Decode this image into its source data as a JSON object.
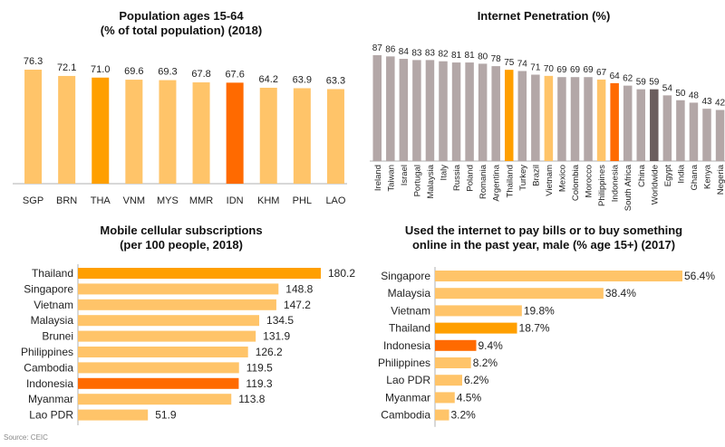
{
  "source": "Source: CEIC",
  "colors": {
    "light": "#FFC469",
    "thailand": "#FF9F00",
    "indonesia": "#FF6A00",
    "grey": "#B3A7A7",
    "worldwide": "#6B5E5E",
    "axis": "#B0B0B0"
  },
  "chart_data": [
    {
      "id": "pop",
      "type": "bar",
      "title": "Population ages 15-64",
      "subtitle": "(% of total population) (2018)",
      "categories": [
        "SGP",
        "BRN",
        "THA",
        "VNM",
        "MYS",
        "MMR",
        "IDN",
        "KHM",
        "PHL",
        "LAO"
      ],
      "values": [
        76.3,
        72.1,
        71.0,
        69.6,
        69.3,
        67.8,
        67.6,
        64.2,
        63.9,
        63.3
      ],
      "labels": [
        "76.3",
        "72.1",
        "71.0",
        "69.6",
        "69.3",
        "67.8",
        "67.6",
        "64.2",
        "63.9",
        "63.3"
      ],
      "highlight": {
        "THA": "thailand",
        "IDN": "indonesia"
      },
      "ylim": [
        0,
        80
      ]
    },
    {
      "id": "inet",
      "type": "bar",
      "title": "Internet Penetration (%)",
      "categories": [
        "Ireland",
        "Taiwan",
        "Israel",
        "Portugal",
        "Malaysia",
        "Italy",
        "Russia",
        "Poland",
        "Romania",
        "Argentina",
        "Thailand",
        "Turkey",
        "Brazil",
        "Vietnam",
        "Mexico",
        "Colombia",
        "Morocco",
        "Philippines",
        "Indonesia",
        "South Africa",
        "China",
        "Worldwide",
        "Egypt",
        "India",
        "Ghana",
        "Kenya",
        "Negeria"
      ],
      "values": [
        87,
        86,
        84,
        83,
        83,
        82,
        81,
        81,
        80,
        78,
        75,
        74,
        71,
        70,
        69,
        69,
        69,
        67,
        64,
        62,
        59,
        59,
        54,
        50,
        48,
        43,
        42
      ],
      "highlight": {
        "Thailand": "thailand",
        "Vietnam": "light",
        "Philippines": "light",
        "Indonesia": "indonesia",
        "Worldwide": "worldwide"
      },
      "ylim": [
        0,
        90
      ]
    },
    {
      "id": "mobile",
      "type": "bar",
      "orientation": "horizontal",
      "title": "Mobile cellular subscriptions",
      "subtitle": "(per 100 people, 2018)",
      "categories": [
        "Thailand",
        "Singapore",
        "Vietnam",
        "Malaysia",
        "Brunei",
        "Philippines",
        "Cambodia",
        "Indonesia",
        "Myanmar",
        "Lao PDR"
      ],
      "values": [
        180.2,
        148.8,
        147.2,
        134.5,
        131.9,
        126.2,
        119.5,
        119.3,
        113.8,
        51.9
      ],
      "labels": [
        "180.2",
        "148.8",
        "147.2",
        "134.5",
        "131.9",
        "126.2",
        "119.5",
        "119.3",
        "113.8",
        "51.9"
      ],
      "highlight": {
        "Thailand": "thailand",
        "Indonesia": "indonesia"
      },
      "xlim": [
        0,
        180.2
      ]
    },
    {
      "id": "pay",
      "type": "bar",
      "orientation": "horizontal",
      "title": "Used the internet to pay bills or to buy something",
      "subtitle": "online in the past year, male (% age 15+) (2017)",
      "categories": [
        "Singapore",
        "Malaysia",
        "Vietnam",
        "Thailand",
        "Indonesia",
        "Philippines",
        "Lao PDR",
        "Myanmar",
        "Cambodia"
      ],
      "values": [
        56.4,
        38.4,
        19.8,
        18.7,
        9.4,
        8.2,
        6.2,
        4.5,
        3.2
      ],
      "labels": [
        "56.4%",
        "38.4%",
        "19.8%",
        "18.7%",
        "9.4%",
        "8.2%",
        "6.2%",
        "4.5%",
        "3.2%"
      ],
      "highlight": {
        "Thailand": "thailand",
        "Indonesia": "indonesia"
      },
      "xlim": [
        0,
        56.4
      ]
    }
  ]
}
